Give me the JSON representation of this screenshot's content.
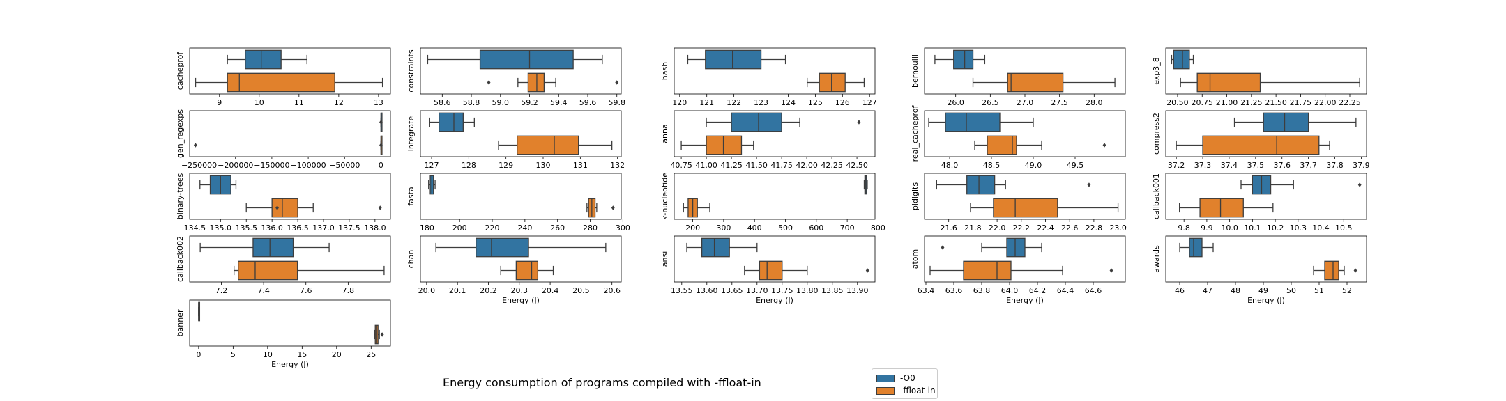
{
  "figure": {
    "title": "Energy consumption of programs compiled with -ffloat-in",
    "legend": [
      {
        "label": "-O0",
        "color": "#3274a1"
      },
      {
        "label": "-ffloat-in",
        "color": "#e1812c"
      }
    ]
  },
  "chart_data": [
    {
      "type": "box",
      "title": "",
      "ylabel": "cacheprof",
      "xlabel": "",
      "xlim": [
        8.25,
        13.3
      ],
      "xticks": [
        9,
        10,
        11,
        12,
        13
      ],
      "xticklabels": [
        "9",
        "10",
        "11",
        "12",
        "13"
      ],
      "boxes": [
        {
          "name": "-O0",
          "whislo": 9.2,
          "q1": 9.65,
          "med": 10.05,
          "q3": 10.55,
          "whishi": 11.2,
          "fliers": []
        },
        {
          "name": "-ffloat-in",
          "whislo": 8.4,
          "q1": 9.2,
          "med": 9.5,
          "q3": 11.9,
          "whishi": 13.1,
          "fliers": []
        }
      ]
    },
    {
      "type": "box",
      "title": "",
      "ylabel": "constraints",
      "xlabel": "",
      "xlim": [
        58.45,
        59.83
      ],
      "xticks": [
        58.6,
        58.8,
        59.0,
        59.2,
        59.4,
        59.6,
        59.8
      ],
      "xticklabels": [
        "58.6",
        "58.8",
        "59.0",
        "59.2",
        "59.4",
        "59.6",
        "59.8"
      ],
      "boxes": [
        {
          "name": "-O0",
          "whislo": 58.5,
          "q1": 58.86,
          "med": 59.2,
          "q3": 59.5,
          "whishi": 59.7,
          "fliers": []
        },
        {
          "name": "-ffloat-in",
          "whislo": 59.12,
          "q1": 59.19,
          "med": 59.25,
          "q3": 59.3,
          "whishi": 59.38,
          "fliers": [
            58.92,
            59.8
          ]
        }
      ]
    },
    {
      "type": "box",
      "title": "",
      "ylabel": "hash",
      "xlabel": "",
      "xlim": [
        119.8,
        127.2
      ],
      "xticks": [
        120,
        121,
        122,
        123,
        124,
        125,
        126,
        127
      ],
      "xticklabels": [
        "120",
        "121",
        "122",
        "123",
        "124",
        "125",
        "126",
        "127"
      ],
      "boxes": [
        {
          "name": "-O0",
          "whislo": 120.3,
          "q1": 120.95,
          "med": 121.95,
          "q3": 123.0,
          "whishi": 123.9,
          "fliers": []
        },
        {
          "name": "-ffloat-in",
          "whislo": 124.7,
          "q1": 125.15,
          "med": 125.6,
          "q3": 126.1,
          "whishi": 126.8,
          "fliers": []
        }
      ]
    },
    {
      "type": "box",
      "title": "",
      "ylabel": "bernoulli",
      "xlabel": "",
      "xlim": [
        25.55,
        28.45
      ],
      "xticks": [
        26.0,
        26.5,
        27.0,
        27.5,
        28.0
      ],
      "xticklabels": [
        "26.0",
        "26.5",
        "27.0",
        "27.5",
        "28.0"
      ],
      "boxes": [
        {
          "name": "-O0",
          "whislo": 25.7,
          "q1": 25.97,
          "med": 26.13,
          "q3": 26.25,
          "whishi": 26.42,
          "fliers": []
        },
        {
          "name": "-ffloat-in",
          "whislo": 26.25,
          "q1": 26.75,
          "med": 26.8,
          "q3": 27.55,
          "whishi": 28.3,
          "fliers": []
        }
      ]
    },
    {
      "type": "box",
      "title": "",
      "ylabel": "exp3_8",
      "xlabel": "",
      "xlim": [
        20.38,
        22.42
      ],
      "xticks": [
        20.5,
        20.75,
        21.0,
        21.25,
        21.5,
        21.75,
        22.0,
        22.25
      ],
      "xticklabels": [
        "20.50",
        "20.75",
        "21.00",
        "21.25",
        "21.50",
        "21.75",
        "22.00",
        "22.25"
      ],
      "boxes": [
        {
          "name": "-O0",
          "whislo": 20.44,
          "q1": 20.46,
          "med": 20.55,
          "q3": 20.62,
          "whishi": 20.66,
          "fliers": []
        },
        {
          "name": "-ffloat-in",
          "whislo": 20.53,
          "q1": 20.7,
          "med": 20.83,
          "q3": 21.34,
          "whishi": 22.35,
          "fliers": []
        }
      ]
    },
    {
      "type": "box",
      "title": "",
      "ylabel": "gen_regexps",
      "xlabel": "",
      "xlim": [
        -263000,
        13000
      ],
      "xticks": [
        -250000,
        -200000,
        -150000,
        -100000,
        -50000,
        0
      ],
      "xticklabels": [
        "−250000",
        "−200000",
        "−150000",
        "−100000",
        "−50000",
        "0"
      ],
      "boxes": [
        {
          "name": "-O0",
          "whislo": 0,
          "q1": 0,
          "med": 0,
          "q3": 0,
          "whishi": 0,
          "fliers": [
            0
          ]
        },
        {
          "name": "-ffloat-in",
          "whislo": 0,
          "q1": 0,
          "med": 0,
          "q3": 0,
          "whishi": 0,
          "fliers": [
            -255000,
            0
          ]
        }
      ]
    },
    {
      "type": "box",
      "title": "",
      "ylabel": "integrate",
      "xlabel": "",
      "xlim": [
        126.7,
        132.1
      ],
      "xticks": [
        127,
        128,
        129,
        130,
        131,
        132
      ],
      "xticklabels": [
        "127",
        "128",
        "129",
        "130",
        "131",
        "132"
      ],
      "boxes": [
        {
          "name": "-O0",
          "whislo": 126.95,
          "q1": 127.2,
          "med": 127.6,
          "q3": 127.85,
          "whishi": 128.15,
          "fliers": []
        },
        {
          "name": "-ffloat-in",
          "whislo": 128.8,
          "q1": 129.3,
          "med": 130.3,
          "q3": 130.95,
          "whishi": 131.85,
          "fliers": []
        }
      ]
    },
    {
      "type": "box",
      "title": "",
      "ylabel": "anna",
      "xlabel": "",
      "xlim": [
        40.68,
        42.68
      ],
      "xticks": [
        40.75,
        41.0,
        41.25,
        41.5,
        41.75,
        42.0,
        42.25,
        42.5
      ],
      "xticklabels": [
        "40.75",
        "41.00",
        "41.25",
        "41.50",
        "41.75",
        "42.00",
        "42.25",
        "42.50"
      ],
      "boxes": [
        {
          "name": "-O0",
          "whislo": 41.0,
          "q1": 41.25,
          "med": 41.52,
          "q3": 41.75,
          "whishi": 41.93,
          "fliers": [
            42.52
          ]
        },
        {
          "name": "-ffloat-in",
          "whislo": 40.75,
          "q1": 41.0,
          "med": 41.17,
          "q3": 41.35,
          "whishi": 41.47,
          "fliers": []
        }
      ]
    },
    {
      "type": "box",
      "title": "",
      "ylabel": "real_cacheprof",
      "xlabel": "",
      "xlim": [
        47.7,
        50.1
      ],
      "xticks": [
        48.0,
        48.5,
        49.0,
        49.5
      ],
      "xticklabels": [
        "48.0",
        "48.5",
        "49.0",
        "49.5"
      ],
      "boxes": [
        {
          "name": "-O0",
          "whislo": 47.75,
          "q1": 47.95,
          "med": 48.2,
          "q3": 48.6,
          "whishi": 49.0,
          "fliers": []
        },
        {
          "name": "-ffloat-in",
          "whislo": 48.3,
          "q1": 48.45,
          "med": 48.75,
          "q3": 48.8,
          "whishi": 49.1,
          "fliers": [
            49.85
          ]
        }
      ]
    },
    {
      "type": "box",
      "title": "",
      "ylabel": "compress2",
      "xlabel": "",
      "xlim": [
        37.16,
        37.92
      ],
      "xticks": [
        37.2,
        37.3,
        37.4,
        37.5,
        37.6,
        37.7,
        37.8,
        37.9
      ],
      "xticklabels": [
        "37.2",
        "37.3",
        "37.4",
        "37.5",
        "37.6",
        "37.7",
        "37.8",
        "37.9"
      ],
      "boxes": [
        {
          "name": "-O0",
          "whislo": 37.42,
          "q1": 37.53,
          "med": 37.61,
          "q3": 37.7,
          "whishi": 37.88,
          "fliers": []
        },
        {
          "name": "-ffloat-in",
          "whislo": 37.2,
          "q1": 37.3,
          "med": 37.58,
          "q3": 37.74,
          "whishi": 37.78,
          "fliers": []
        }
      ]
    },
    {
      "type": "box",
      "title": "",
      "ylabel": "binary-trees",
      "xlabel": "",
      "xlim": [
        134.4,
        138.3
      ],
      "xticks": [
        134.5,
        135.0,
        135.5,
        136.0,
        136.5,
        137.0,
        137.5,
        138.0
      ],
      "xticklabels": [
        "134.5",
        "135.0",
        "135.5",
        "136.0",
        "136.5",
        "137.0",
        "137.5",
        "138.0"
      ],
      "boxes": [
        {
          "name": "-O0",
          "whislo": 134.6,
          "q1": 134.8,
          "med": 135.0,
          "q3": 135.2,
          "whishi": 135.3,
          "fliers": []
        },
        {
          "name": "-ffloat-in",
          "whislo": 135.5,
          "q1": 136.0,
          "med": 136.2,
          "q3": 136.5,
          "whishi": 136.8,
          "fliers": [
            136.1,
            138.1
          ]
        }
      ]
    },
    {
      "type": "box",
      "title": "",
      "ylabel": "fasta",
      "xlabel": "",
      "xlim": [
        176,
        299
      ],
      "xticks": [
        180,
        200,
        220,
        240,
        260,
        280,
        300
      ],
      "xticklabels": [
        "180",
        "200",
        "220",
        "240",
        "260",
        "280",
        "300"
      ],
      "boxes": [
        {
          "name": "-O0",
          "whislo": 181,
          "q1": 182,
          "med": 183,
          "q3": 184,
          "whishi": 185,
          "fliers": []
        },
        {
          "name": "-ffloat-in",
          "whislo": 278,
          "q1": 279,
          "med": 281,
          "q3": 283,
          "whishi": 284,
          "fliers": [
            294
          ]
        }
      ]
    },
    {
      "type": "box",
      "title": "",
      "ylabel": "k-nucleotide",
      "xlabel": "",
      "xlim": [
        140,
        790
      ],
      "xticks": [
        200,
        300,
        400,
        500,
        600,
        700,
        800
      ],
      "xticklabels": [
        "200",
        "300",
        "400",
        "500",
        "600",
        "700",
        "800"
      ],
      "boxes": [
        {
          "name": "-O0",
          "whislo": 755,
          "q1": 757,
          "med": 760,
          "q3": 763,
          "whishi": 765,
          "fliers": []
        },
        {
          "name": "-ffloat-in",
          "whislo": 170,
          "q1": 185,
          "med": 200,
          "q3": 215,
          "whishi": 255,
          "fliers": []
        }
      ]
    },
    {
      "type": "box",
      "title": "",
      "ylabel": "pidigits",
      "xlabel": "",
      "xlim": [
        21.4,
        23.06
      ],
      "xticks": [
        21.6,
        21.8,
        22.0,
        22.2,
        22.4,
        22.6,
        22.8,
        23.0
      ],
      "xticklabels": [
        "21.6",
        "21.8",
        "22.0",
        "22.2",
        "22.4",
        "22.6",
        "22.8",
        "23.0"
      ],
      "boxes": [
        {
          "name": "-O0",
          "whislo": 21.5,
          "q1": 21.75,
          "med": 21.85,
          "q3": 21.98,
          "whishi": 22.07,
          "fliers": [
            22.76
          ]
        },
        {
          "name": "-ffloat-in",
          "whislo": 21.78,
          "q1": 21.97,
          "med": 22.15,
          "q3": 22.5,
          "whishi": 23.0,
          "fliers": []
        }
      ]
    },
    {
      "type": "box",
      "title": "",
      "ylabel": "callback001",
      "xlabel": "",
      "xlim": [
        9.72,
        10.6
      ],
      "xticks": [
        9.8,
        9.9,
        10.0,
        10.1,
        10.2,
        10.3,
        10.4,
        10.5
      ],
      "xticklabels": [
        "9.8",
        "9.9",
        "10.0",
        "10.1",
        "10.2",
        "10.3",
        "10.4",
        "10.5"
      ],
      "boxes": [
        {
          "name": "-O0",
          "whislo": 10.05,
          "q1": 10.1,
          "med": 10.14,
          "q3": 10.18,
          "whishi": 10.28,
          "fliers": [
            10.57
          ]
        },
        {
          "name": "-ffloat-in",
          "whislo": 9.78,
          "q1": 9.87,
          "med": 9.96,
          "q3": 10.06,
          "whishi": 10.19,
          "fliers": []
        }
      ]
    },
    {
      "type": "box",
      "title": "",
      "ylabel": "callback002",
      "xlabel": "",
      "xlim": [
        7.05,
        8.0
      ],
      "xticks": [
        7.2,
        7.4,
        7.6,
        7.8
      ],
      "xticklabels": [
        "7.2",
        "7.4",
        "7.6",
        "7.8"
      ],
      "boxes": [
        {
          "name": "-O0",
          "whislo": 7.1,
          "q1": 7.35,
          "med": 7.43,
          "q3": 7.54,
          "whishi": 7.71,
          "fliers": []
        },
        {
          "name": "-ffloat-in",
          "whislo": 7.26,
          "q1": 7.28,
          "med": 7.36,
          "q3": 7.56,
          "whishi": 7.97,
          "fliers": []
        }
      ]
    },
    {
      "type": "box",
      "title": "",
      "ylabel": "chan",
      "xlabel": "Energy (J)",
      "xlim": [
        19.98,
        20.63
      ],
      "xticks": [
        20.0,
        20.1,
        20.2,
        20.3,
        20.4,
        20.5,
        20.6
      ],
      "xticklabels": [
        "20.0",
        "20.1",
        "20.2",
        "20.3",
        "20.4",
        "20.5",
        "20.6"
      ],
      "boxes": [
        {
          "name": "-O0",
          "whislo": 20.03,
          "q1": 20.16,
          "med": 20.21,
          "q3": 20.33,
          "whishi": 20.58,
          "fliers": []
        },
        {
          "name": "-ffloat-in",
          "whislo": 20.24,
          "q1": 20.29,
          "med": 20.34,
          "q3": 20.36,
          "whishi": 20.41,
          "fliers": []
        }
      ]
    },
    {
      "type": "box",
      "title": "",
      "ylabel": "ansi",
      "xlabel": "Energy (J)",
      "xlim": [
        13.535,
        13.935
      ],
      "xticks": [
        13.55,
        13.6,
        13.65,
        13.7,
        13.75,
        13.8,
        13.85,
        13.9
      ],
      "xticklabels": [
        "13.55",
        "13.60",
        "13.65",
        "13.70",
        "13.75",
        "13.80",
        "13.85",
        "13.90"
      ],
      "boxes": [
        {
          "name": "-O0",
          "whislo": 13.56,
          "q1": 13.59,
          "med": 13.615,
          "q3": 13.645,
          "whishi": 13.7,
          "fliers": []
        },
        {
          "name": "-ffloat-in",
          "whislo": 13.675,
          "q1": 13.705,
          "med": 13.72,
          "q3": 13.75,
          "whishi": 13.8,
          "fliers": [
            13.92
          ]
        }
      ]
    },
    {
      "type": "box",
      "title": "",
      "ylabel": "atom",
      "xlabel": "Energy (J)",
      "xlim": [
        63.39,
        64.83
      ],
      "xticks": [
        63.4,
        63.6,
        63.8,
        64.0,
        64.2,
        64.4,
        64.6
      ],
      "xticklabels": [
        "63.4",
        "63.6",
        "63.8",
        "64.0",
        "64.2",
        "64.4",
        "64.6"
      ],
      "boxes": [
        {
          "name": "-O0",
          "whislo": 63.8,
          "q1": 63.98,
          "med": 64.04,
          "q3": 64.11,
          "whishi": 64.23,
          "fliers": [
            63.52
          ]
        },
        {
          "name": "-ffloat-in",
          "whislo": 63.43,
          "q1": 63.67,
          "med": 63.91,
          "q3": 64.01,
          "whishi": 64.38,
          "fliers": [
            64.73
          ]
        }
      ]
    },
    {
      "type": "box",
      "title": "",
      "ylabel": "awards",
      "xlabel": "Energy (J)",
      "xlim": [
        45.5,
        52.7
      ],
      "xticks": [
        46,
        47,
        48,
        49,
        50,
        51,
        52
      ],
      "xticklabels": [
        "46",
        "47",
        "48",
        "49",
        "50",
        "51",
        "52"
      ],
      "boxes": [
        {
          "name": "-O0",
          "whislo": 46.0,
          "q1": 46.35,
          "med": 46.5,
          "q3": 46.8,
          "whishi": 47.2,
          "fliers": []
        },
        {
          "name": "-ffloat-in",
          "whislo": 50.8,
          "q1": 51.2,
          "med": 51.5,
          "q3": 51.7,
          "whishi": 51.9,
          "fliers": [
            52.3
          ]
        }
      ]
    },
    {
      "type": "box",
      "title": "",
      "ylabel": "banner",
      "xlabel": "Energy (J)",
      "xlim": [
        -1.3,
        27.8
      ],
      "xticks": [
        0,
        5,
        10,
        15,
        20,
        25
      ],
      "xticklabels": [
        "0",
        "5",
        "10",
        "15",
        "20",
        "25"
      ],
      "boxes": [
        {
          "name": "-O0",
          "whislo": 0,
          "q1": 0,
          "med": 0,
          "q3": 0,
          "whishi": 0,
          "fliers": []
        },
        {
          "name": "-ffloat-in",
          "whislo": 25.5,
          "q1": 25.6,
          "med": 25.8,
          "q3": 26.0,
          "whishi": 26.2,
          "fliers": [
            26.6
          ]
        }
      ]
    }
  ]
}
